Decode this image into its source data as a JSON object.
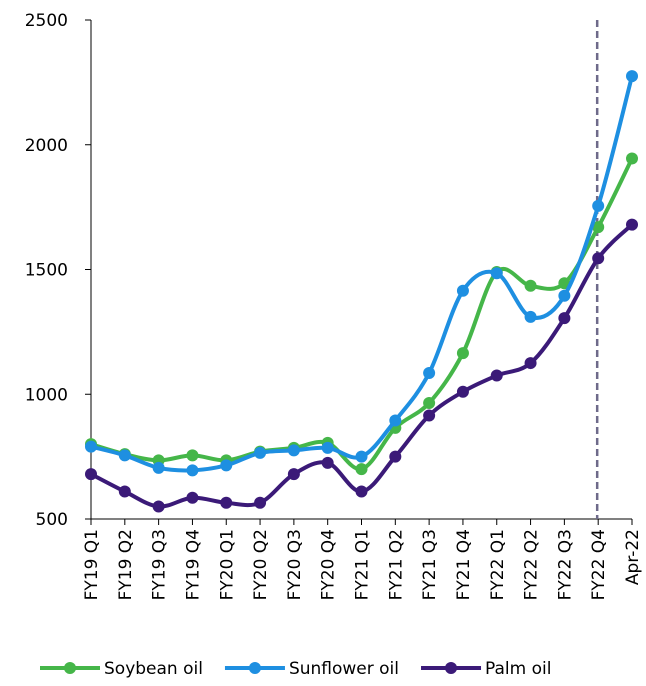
{
  "chart_data": {
    "type": "line",
    "categories": [
      "FY19 Q1",
      "FY19 Q2",
      "FY19 Q3",
      "FY19 Q4",
      "FY20 Q1",
      "FY20 Q2",
      "FY20 Q3",
      "FY20 Q4",
      "FY21 Q1",
      "FY21 Q2",
      "FY21 Q3",
      "FY21 Q4",
      "FY22 Q1",
      "FY22 Q2",
      "FY22 Q3",
      "FY22 Q4",
      "Apr-22"
    ],
    "series": [
      {
        "name": "Soybean oil",
        "color": "#45b649",
        "values": [
          800,
          760,
          735,
          755,
          735,
          770,
          785,
          805,
          700,
          865,
          965,
          1165,
          1490,
          1435,
          1445,
          1670,
          1945
        ]
      },
      {
        "name": "Sunflower oil",
        "color": "#1e8fe1",
        "values": [
          790,
          755,
          705,
          695,
          715,
          765,
          775,
          785,
          750,
          895,
          1085,
          1415,
          1485,
          1310,
          1395,
          1755,
          2275
        ]
      },
      {
        "name": "Palm oil",
        "color": "#3b1a78",
        "values": [
          680,
          610,
          550,
          585,
          565,
          565,
          680,
          725,
          610,
          750,
          915,
          1010,
          1075,
          1125,
          1305,
          1545,
          1680
        ]
      }
    ],
    "ylim": [
      500,
      2500
    ],
    "yticks": [
      500,
      1000,
      1500,
      2000,
      2500
    ],
    "grid": false,
    "smooth": true,
    "marker": "circle",
    "vline_category": "FY22 Q4",
    "legend": "bottom"
  }
}
